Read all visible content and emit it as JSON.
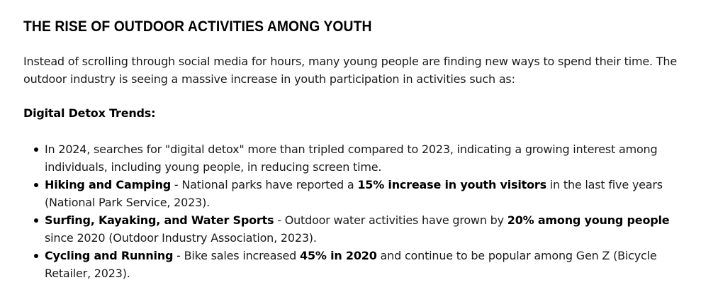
{
  "article": {
    "heading": "THE RISE OF OUTDOOR ACTIVITIES AMONG YOUTH",
    "intro": "Instead of scrolling through social media for hours, many young people are finding new ways to spend their time. The outdoor industry is seeing a massive increase in youth participation in activities such as:",
    "subheading": "Digital Detox Trends:",
    "items": [
      {
        "text": "In 2024, searches for \"digital detox\" more than tripled compared to 2023, indicating a growing interest among individuals, including young people, in reducing screen time."
      },
      {
        "title": "Hiking and Camping",
        "text_before": " - National parks have reported a ",
        "highlight": "15% increase in youth visitors",
        "text_after": " in the last five years (National Park Service, 2023)."
      },
      {
        "title": "Surfing, Kayaking, and Water Sports",
        "text_before": " - Outdoor water activities have grown by ",
        "highlight": "20% among young people",
        "text_after": " since 2020 (Outdoor Industry Association, 2023)."
      },
      {
        "title": "Cycling and Running",
        "text_before": " - Bike sales increased ",
        "highlight": "45% in 2020",
        "text_after": " and continue to be popular among Gen Z (Bicycle Retailer, 2023)."
      }
    ]
  }
}
